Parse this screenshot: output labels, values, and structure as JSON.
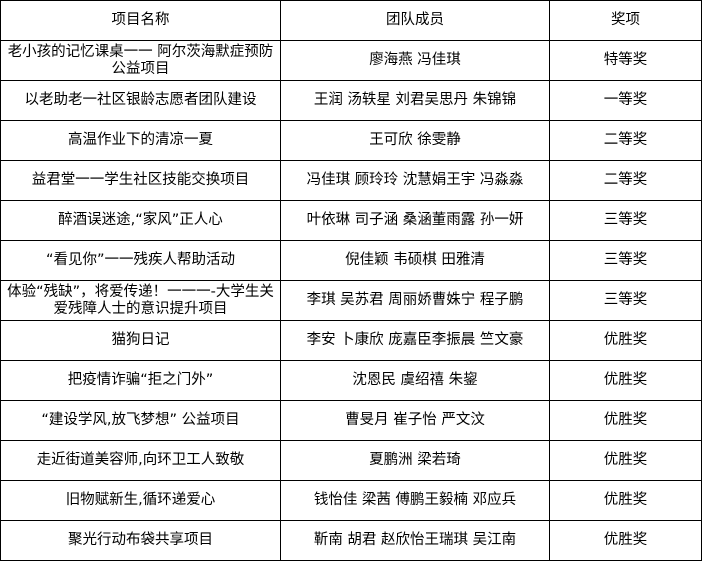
{
  "table": {
    "headers": [
      "项目名称",
      "团队成员",
      "奖项"
    ],
    "rows": [
      [
        "老小孩的记忆课桌一一 阿尔茨海默症预防公益项目",
        "廖海燕 冯佳琪",
        "特等奖"
      ],
      [
        "以老助老一社区银龄志愿者团队建设",
        "王润 汤轶星 刘君吴思丹 朱锦锦",
        "一等奖"
      ],
      [
        "高温作业下的清凉一夏",
        "王可欣 徐雯静",
        "二等奖"
      ],
      [
        "益君堂一一学生社区技能交换项目",
        "冯佳琪 顾玲玲 沈慧娟王宇 冯淼淼",
        "二等奖"
      ],
      [
        "醉酒误迷途,“家风”正人心",
        "叶依琳 司子涵 桑涵董雨露 孙一妍",
        "三等奖"
      ],
      [
        "“看见你”一一残疾人帮助活动",
        "倪佳颖 韦硕棋 田雅清",
        "三等奖"
      ],
      [
        "体验“残缺”，将爱传递！一一一-大学生关爱残障人士的意识提升项目",
        "李琪 吴苏君 周丽娇曹姝宁 程子鹏",
        "三等奖"
      ],
      [
        "猫狗日记",
        "李安 卜康欣 庞嘉臣李振晨 竺文豪",
        "优胜奖"
      ],
      [
        "把疫情诈骗“拒之门外”",
        "沈恩民 虞绍禧 朱鋆",
        "优胜奖"
      ],
      [
        "“建设学风,放飞梦想” 公益项目",
        "曹旻月 崔子怡 严文汶",
        "优胜奖"
      ],
      [
        "走近街道美容师,向环卫工人致敬",
        "夏鹏洲 梁若琦",
        "优胜奖"
      ],
      [
        "旧物赋新生,循环递爱心",
        "钱怡佳 梁茜 傅鹏王毅楠 邓应兵",
        "优胜奖"
      ],
      [
        "聚光行动布袋共享项目",
        "靳南 胡君 赵欣怡王瑞琪 吴江南",
        "优胜奖"
      ]
    ]
  }
}
